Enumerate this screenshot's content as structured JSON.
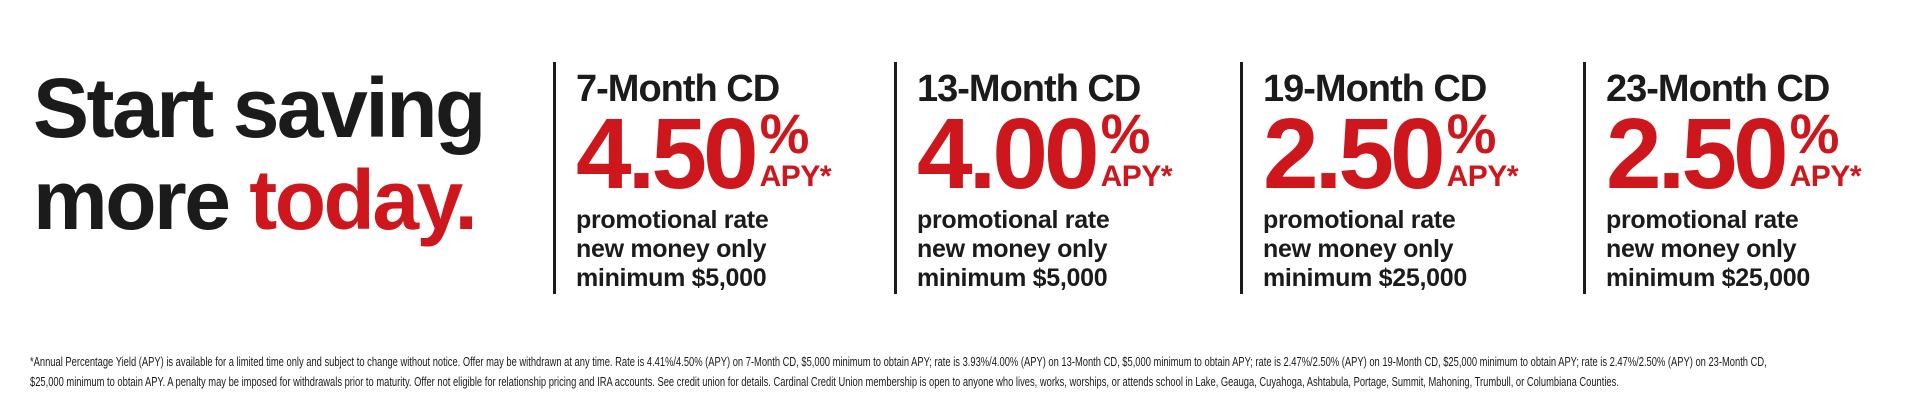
{
  "colors": {
    "accent_red": "#CE171D",
    "text_black": "#1B1B1B",
    "background": "#FFFFFF"
  },
  "headline": {
    "line1": "Start saving",
    "line2_prefix": "more ",
    "line2_accent": "today."
  },
  "cards": [
    {
      "title": "7-Month CD",
      "rate": "4.50",
      "percent_sign": "%",
      "apy_label": "APY*",
      "details": [
        "promotional rate",
        "new money only",
        "minimum $5,000"
      ]
    },
    {
      "title": "13-Month CD",
      "rate": "4.00",
      "percent_sign": "%",
      "apy_label": "APY*",
      "details": [
        "promotional rate",
        "new money only",
        "minimum $5,000"
      ]
    },
    {
      "title": "19-Month CD",
      "rate": "2.50",
      "percent_sign": "%",
      "apy_label": "APY*",
      "details": [
        "promotional rate",
        "new money only",
        "minimum $25,000"
      ]
    },
    {
      "title": "23-Month CD",
      "rate": "2.50",
      "percent_sign": "%",
      "apy_label": "APY*",
      "details": [
        "promotional rate",
        "new money only",
        "minimum $25,000"
      ]
    }
  ],
  "disclaimer": "*Annual Percentage Yield (APY) is available for a limited time only and subject to change without notice. Offer may be withdrawn at any time. Rate is 4.41%/4.50% (APY) on 7-Month CD, $5,000 minimum to obtain APY; rate is 3.93%/4.00% (APY) on 13-Month CD, $5,000 minimum to obtain APY; rate is 2.47%/2.50% (APY) on 19-Month CD, $25,000 minimum to obtain APY; rate is 2.47%/2.50% (APY) on 23-Month CD, $25,000 minimum to obtain APY. A penalty may be imposed for withdrawals prior to maturity. Offer not eligible for relationship pricing and IRA accounts. See credit union for details. Cardinal Credit Union membership is open to anyone who lives, works, worships, or attends school in Lake, Geauga, Cuyahoga, Ashtabula, Portage, Summit, Mahoning, Trumbull, or Columbiana Counties."
}
